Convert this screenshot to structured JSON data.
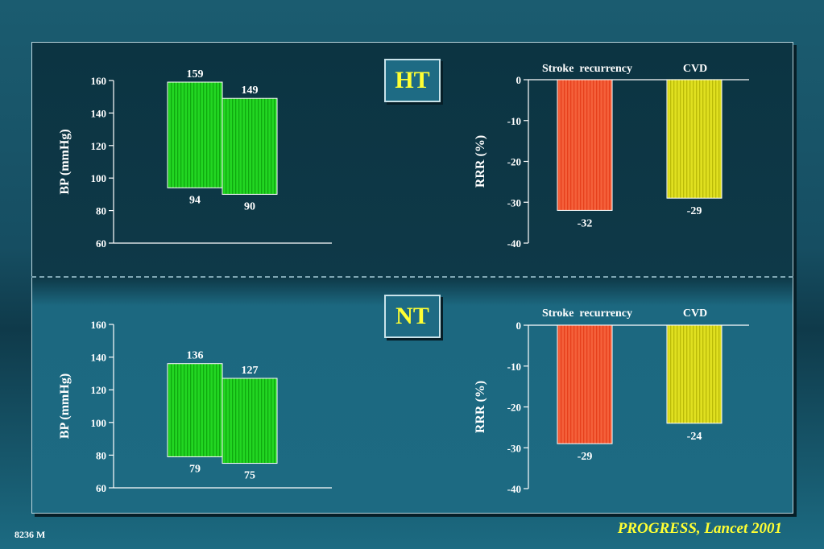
{
  "slide_id": "8236 M",
  "citation": "PROGRESS, Lancet 2001",
  "colors": {
    "bp_bar": "#1fcf1f",
    "stroke_bar": "#f0552d",
    "cvd_bar": "#d6d615",
    "badge_text": "#ffff33"
  },
  "chart_data": [
    {
      "type": "bar",
      "group": "HT",
      "ylabel": "BP (mmHg)",
      "ylim": [
        60,
        160
      ],
      "yticks": [
        60,
        80,
        100,
        120,
        140,
        160
      ],
      "bars": [
        {
          "top": 159,
          "bottom": 94,
          "top_label": "159",
          "bottom_label": "94"
        },
        {
          "top": 149,
          "bottom": 90,
          "top_label": "149",
          "bottom_label": "90"
        }
      ]
    },
    {
      "type": "bar",
      "group": "HT",
      "ylabel": "RRR (%)",
      "ylim": [
        -40,
        0
      ],
      "yticks": [
        0,
        -10,
        -20,
        -30,
        -40
      ],
      "categories": [
        "Stroke  recurrency",
        "CVD"
      ],
      "values": [
        -32,
        -29
      ],
      "labels": [
        "-32",
        "-29"
      ]
    },
    {
      "type": "bar",
      "group": "NT",
      "ylabel": "BP (mmHg)",
      "ylim": [
        60,
        160
      ],
      "yticks": [
        60,
        80,
        100,
        120,
        140,
        160
      ],
      "bars": [
        {
          "top": 136,
          "bottom": 79,
          "top_label": "136",
          "bottom_label": "79"
        },
        {
          "top": 127,
          "bottom": 75,
          "top_label": "127",
          "bottom_label": "75"
        }
      ]
    },
    {
      "type": "bar",
      "group": "NT",
      "ylabel": "RRR (%)",
      "ylim": [
        -40,
        0
      ],
      "yticks": [
        0,
        -10,
        -20,
        -30,
        -40
      ],
      "categories": [
        "Stroke  recurrency",
        "CVD"
      ],
      "values": [
        -29,
        -24
      ],
      "labels": [
        "-29",
        "-24"
      ]
    }
  ],
  "badges": [
    "HT",
    "NT"
  ]
}
